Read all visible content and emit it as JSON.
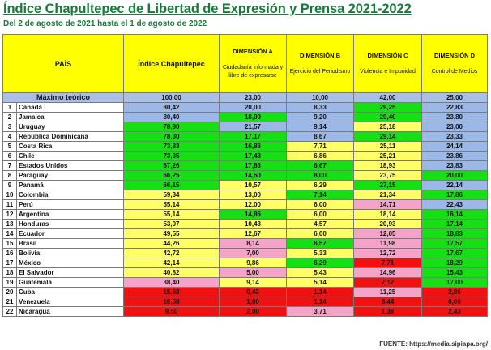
{
  "title": "Índice Chapultepec de Libertad de Expresión y Prensa 2021-2022",
  "subtitle": "Del 2 de agosto de 2021 hasta el 1 de agosto de 2022",
  "colors": {
    "blue": "#9bb8e8",
    "green": "#14e014",
    "yellow": "#ffff66",
    "pink": "#f5a3c9",
    "red": "#f21010"
  },
  "headers": {
    "pais": "PAÍS",
    "indice": "Índice Chapultepec",
    "dim_a_name": "DIMENSIÓN A",
    "dim_a_desc": "Ciudadanía informada y libre de expresarse",
    "dim_b_name": "DIMENSIÓN B",
    "dim_b_desc": "Ejercicio del Periodismo",
    "dim_c_name": "DIMENSIÓN C",
    "dim_c_desc": "Violencia e Impunidad",
    "dim_d_name": "DIMENSIÓN D",
    "dim_d_desc": "Control de Medios"
  },
  "max_row": {
    "label": "Máximo teórico",
    "indice": "100,00",
    "a": "23,00",
    "b": "10,00",
    "c": "42,00",
    "d": "25,00"
  },
  "rows": [
    {
      "n": "1",
      "country": "Canadá",
      "indice": "80,42",
      "ic": "blue",
      "a": "20,00",
      "ac": "blue",
      "b": "8,33",
      "bc": "blue",
      "c": "29,25",
      "cc": "green",
      "d": "22,83",
      "dc": "blue"
    },
    {
      "n": "2",
      "country": "Jamaica",
      "indice": "80,40",
      "ic": "blue",
      "a": "18,00",
      "ac": "green",
      "b": "9,20",
      "bc": "blue",
      "c": "29,40",
      "cc": "green",
      "d": "23,80",
      "dc": "blue"
    },
    {
      "n": "3",
      "country": "Uruguay",
      "indice": "78,90",
      "ic": "green",
      "a": "21,57",
      "ac": "blue",
      "b": "9,14",
      "bc": "blue",
      "c": "25,18",
      "cc": "yellow",
      "d": "23,00",
      "dc": "blue"
    },
    {
      "n": "4",
      "country": "República Dominicana",
      "indice": "78,30",
      "ic": "green",
      "a": "17,17",
      "ac": "green",
      "b": "8,67",
      "bc": "blue",
      "c": "29,14",
      "cc": "green",
      "d": "23,33",
      "dc": "blue"
    },
    {
      "n": "5",
      "country": "Costa Rica",
      "indice": "73,83",
      "ic": "green",
      "a": "16,86",
      "ac": "green",
      "b": "7,71",
      "bc": "yellow",
      "c": "25,11",
      "cc": "yellow",
      "d": "24,14",
      "dc": "blue"
    },
    {
      "n": "6",
      "country": "Chile",
      "indice": "73,35",
      "ic": "green",
      "a": "17,43",
      "ac": "green",
      "b": "6,86",
      "bc": "yellow",
      "c": "25,21",
      "cc": "yellow",
      "d": "23,86",
      "dc": "blue"
    },
    {
      "n": "7",
      "country": "Estados Unidos",
      "indice": "67,26",
      "ic": "green",
      "a": "17,83",
      "ac": "green",
      "b": "6,67",
      "bc": "green",
      "c": "18,93",
      "cc": "yellow",
      "d": "23,83",
      "dc": "blue"
    },
    {
      "n": "8",
      "country": "Paraguay",
      "indice": "66,25",
      "ic": "green",
      "a": "14,50",
      "ac": "green",
      "b": "8,00",
      "bc": "green",
      "c": "23,75",
      "cc": "yellow",
      "d": "20,00",
      "dc": "green"
    },
    {
      "n": "9",
      "country": "Panamá",
      "indice": "66,15",
      "ic": "green",
      "a": "10,57",
      "ac": "yellow",
      "b": "6,29",
      "bc": "yellow",
      "c": "27,15",
      "cc": "green",
      "d": "22,14",
      "dc": "blue"
    },
    {
      "n": "10",
      "country": "Colombia",
      "indice": "59,34",
      "ic": "yellow",
      "a": "13,00",
      "ac": "yellow",
      "b": "7,14",
      "bc": "green",
      "c": "21,34",
      "cc": "yellow",
      "d": "17,86",
      "dc": "green"
    },
    {
      "n": "11",
      "country": "Perú",
      "indice": "55,14",
      "ic": "yellow",
      "a": "12,00",
      "ac": "yellow",
      "b": "6,00",
      "bc": "yellow",
      "c": "14,71",
      "cc": "pink",
      "d": "22,43",
      "dc": "blue"
    },
    {
      "n": "12",
      "country": "Argentina",
      "indice": "55,14",
      "ic": "yellow",
      "a": "14,86",
      "ac": "green",
      "b": "6,00",
      "bc": "yellow",
      "c": "18,14",
      "cc": "yellow",
      "d": "16,14",
      "dc": "green"
    },
    {
      "n": "13",
      "country": "Honduras",
      "indice": "53,07",
      "ic": "yellow",
      "a": "10,43",
      "ac": "yellow",
      "b": "4,57",
      "bc": "yellow",
      "c": "20,93",
      "cc": "yellow",
      "d": "17,14",
      "dc": "green"
    },
    {
      "n": "14",
      "country": "Ecuador",
      "indice": "49,55",
      "ic": "yellow",
      "a": "12,67",
      "ac": "yellow",
      "b": "6,00",
      "bc": "yellow",
      "c": "12,05",
      "cc": "pink",
      "d": "18,83",
      "dc": "green"
    },
    {
      "n": "15",
      "country": "Brasil",
      "indice": "44,26",
      "ic": "yellow",
      "a": "8,14",
      "ac": "pink",
      "b": "6,57",
      "bc": "green",
      "c": "11,98",
      "cc": "pink",
      "d": "17,57",
      "dc": "green"
    },
    {
      "n": "16",
      "country": "Bolivia",
      "indice": "42,72",
      "ic": "yellow",
      "a": "7,00",
      "ac": "pink",
      "b": "5,33",
      "bc": "yellow",
      "c": "12,72",
      "cc": "pink",
      "d": "17,67",
      "dc": "green"
    },
    {
      "n": "17",
      "country": "México",
      "indice": "42,14",
      "ic": "yellow",
      "a": "9,86",
      "ac": "yellow",
      "b": "6,29",
      "bc": "green",
      "c": "7,71",
      "cc": "red",
      "d": "18,29",
      "dc": "green"
    },
    {
      "n": "18",
      "country": "El Salvador",
      "indice": "40,82",
      "ic": "yellow",
      "a": "5,00",
      "ac": "pink",
      "b": "5,43",
      "bc": "yellow",
      "c": "14,96",
      "cc": "pink",
      "d": "15,43",
      "dc": "green"
    },
    {
      "n": "19",
      "country": "Guatemala",
      "indice": "38,40",
      "ic": "pink",
      "a": "9,14",
      "ac": "yellow",
      "b": "5,14",
      "bc": "yellow",
      "c": "7,12",
      "cc": "red",
      "d": "17,00",
      "dc": "green"
    },
    {
      "n": "20",
      "country": "Cuba",
      "indice": "15,68",
      "ic": "red",
      "a": "0,43",
      "ac": "red",
      "b": "1,14",
      "bc": "red",
      "c": "11,25",
      "cc": "pink",
      "d": "2,86",
      "dc": "red"
    },
    {
      "n": "21",
      "country": "Venezuela",
      "indice": "10,58",
      "ic": "red",
      "a": "1,00",
      "ac": "red",
      "b": "1,14",
      "bc": "red",
      "c": "8,44",
      "cc": "red",
      "d": "0,00",
      "dc": "red"
    },
    {
      "n": "22",
      "country": "Nicaragua",
      "indice": "9,50",
      "ic": "red",
      "a": "2,00",
      "ac": "red",
      "b": "3,71",
      "bc": "pink",
      "c": "1,36",
      "cc": "red",
      "d": "2,43",
      "dc": "red"
    }
  ],
  "source": "FUENTE: https://media.sipiapa.org/"
}
